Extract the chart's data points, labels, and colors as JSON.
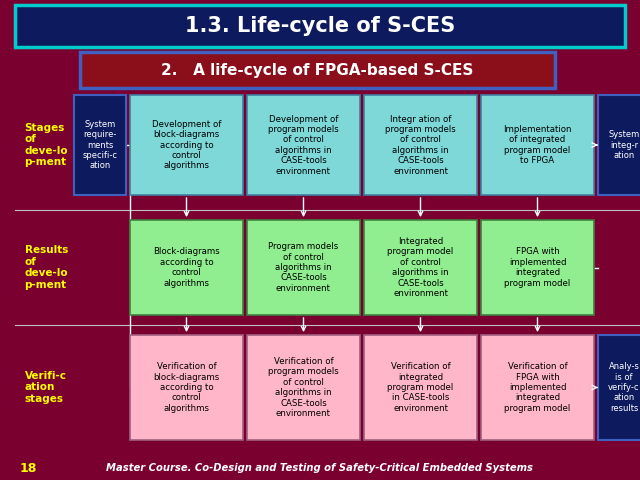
{
  "bg_color": "#7a0030",
  "title_box_bg": "#0d1a5e",
  "title_box_border": "#00cccc",
  "title_text": "1.3. Life-cycle of S-CES",
  "title_color": "#ffffff",
  "subtitle_box_bg": "#8b0f1a",
  "subtitle_box_border": "#0d1a5e",
  "subtitle_text": "2.   A life-cycle of FPGA-based S-CES",
  "subtitle_color": "#ffffff",
  "stage_label_color": "#ffff00",
  "stage_labels": [
    "Stages\nof\ndeve-lo\np-ment",
    "Results\nof\ndeve-lo\np-ment",
    "Verifi-c\nation\nstages"
  ],
  "cyan_box_color": "#7fd8d8",
  "cyan_box_border": "#4080a0",
  "green_box_color": "#90ee90",
  "green_box_border": "#408040",
  "pink_box_color": "#ffb6c8",
  "pink_box_border": "#a06080",
  "dark_blue_box_color": "#0d1a5e",
  "dark_blue_box_border": "#4060c0",
  "line_color": "#ffffff",
  "arrow_color": "#ffffff",
  "footer_text": "Master Course. Co-Design and Testing of Safety-Critical Embedded Systems",
  "footer_color": "#ffffff",
  "page_number": "18",
  "page_number_color": "#ffff00",
  "row1_boxes": [
    "Development of\nblock-diagrams\naccording to\ncontrol\nalgorithms",
    "Development of\nprogram models\nof control\nalgorithms in\nCASE-tools\nenvironment",
    "Integr ation of\nprogram models\nof control\nalgorithms in\nCASE-tools\nenvironment",
    "Implementation\nof integrated\nprogram model\nto FPGA"
  ],
  "row2_boxes": [
    "Block-diagrams\naccording to\ncontrol\nalgorithms",
    "Program models\nof control\nalgorithms in\nCASE-tools\nenvironment",
    "Integrated\nprogram model\nof control\nalgorithms in\nCASE-tools\nenvironment",
    "FPGA with\nimplemented\nintegrated\nprogram model"
  ],
  "row3_boxes": [
    "Verification of\nblock-diagrams\naccording to\ncontrol\nalgorithms",
    "Verification of\nprogram models\nof control\nalgorithms in\nCASE-tools\nenvironment",
    "Verification of\nintegrated\nprogram model\nin CASE-tools\nenvironment",
    "Verification of\nFPGA with\nimplemented\nintegrated\nprogram model"
  ],
  "left_dark_box_text": "System\nrequire-\nments\nspecifi-c\nation",
  "right_dark_box_row1_text": "System\ninteg-r\nation",
  "right_dark_box_row3_text": "Analy-s\nis of\nverify-c\nation\nresults"
}
